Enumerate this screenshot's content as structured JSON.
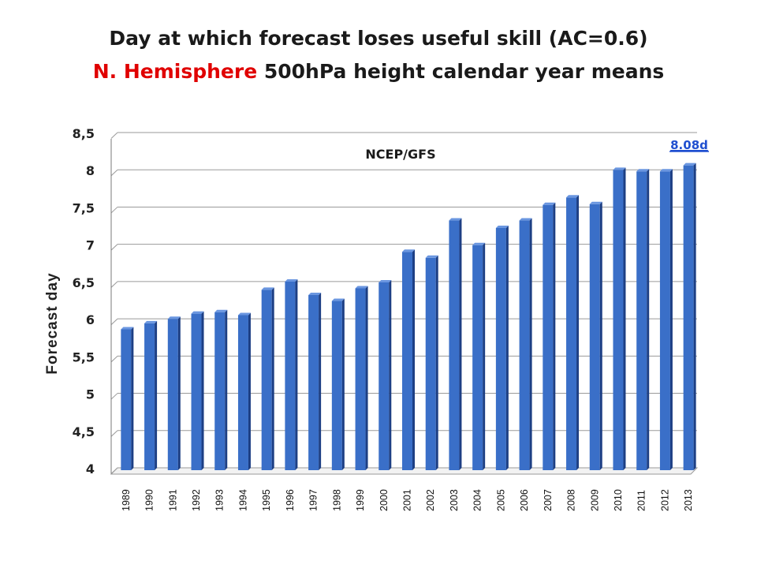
{
  "title_line1": "Day at which forecast loses useful skill (AC=0.6)",
  "title_line2_red": "N. Hemisphere",
  "title_line2_rest": " 500hPa height calendar year means",
  "series_label": "NCEP/GFS",
  "last_value_label": "8.08d",
  "colors": {
    "bar": "#3a6fc8",
    "bar_dark": "#1d3f84",
    "bar_top": "#6a96e0",
    "title_red": "#e00000",
    "link": "#1f4fd0"
  },
  "chart_data": {
    "type": "bar",
    "title": "Day at which forecast loses useful skill (AC=0.6) N. Hemisphere 500hPa height calendar year means",
    "xlabel": "",
    "ylabel": "Forecast day",
    "ylim": [
      4,
      8.5
    ],
    "yticks": [
      "4",
      "4,5",
      "5",
      "5,5",
      "6",
      "6,5",
      "7",
      "7,5",
      "8",
      "8,5"
    ],
    "categories": [
      "1989",
      "1990",
      "1991",
      "1992",
      "1993",
      "1994",
      "1995",
      "1996",
      "1997",
      "1998",
      "1999",
      "2000",
      "2001",
      "2002",
      "2003",
      "2004",
      "2005",
      "2006",
      "2007",
      "2008",
      "2009",
      "2010",
      "2011",
      "2012",
      "2013"
    ],
    "values": [
      5.88,
      5.96,
      6.02,
      6.09,
      6.11,
      6.07,
      6.41,
      6.52,
      6.34,
      6.26,
      6.43,
      6.51,
      6.92,
      6.84,
      7.34,
      7.01,
      7.24,
      7.34,
      7.55,
      7.65,
      7.56,
      8.02,
      8.0,
      8.0,
      8.08
    ],
    "grid": true,
    "annotations": [
      "NCEP/GFS",
      "8.08d"
    ]
  }
}
